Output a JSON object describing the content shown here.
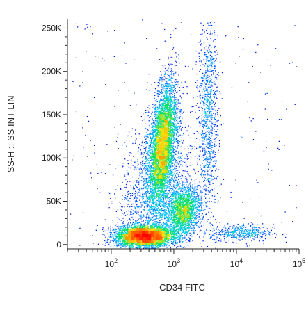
{
  "chart_data": {
    "type": "scatter",
    "subtype": "flow-cytometry-density-plot",
    "title": "",
    "xlabel": "CD34 FITC",
    "ylabel": "SS-H :: SS INT LIN",
    "x_scale": "log",
    "y_scale": "linear",
    "xlim": [
      20,
      100000
    ],
    "ylim": [
      -5000,
      260000
    ],
    "grid": false,
    "legend": "none",
    "x_tick_labels": [
      {
        "value": 100,
        "base": "10",
        "exp": "2"
      },
      {
        "value": 1000,
        "base": "10",
        "exp": "3"
      },
      {
        "value": 10000,
        "base": "10",
        "exp": "4"
      },
      {
        "value": 100000,
        "base": "10",
        "exp": "5"
      }
    ],
    "y_ticks": [
      {
        "value": 0,
        "label": "0"
      },
      {
        "value": 50000,
        "label": "50K"
      },
      {
        "value": 100000,
        "label": "100K"
      },
      {
        "value": 150000,
        "label": "150K"
      },
      {
        "value": 200000,
        "label": "200K"
      },
      {
        "value": 250000,
        "label": "250K"
      }
    ],
    "color_scale": [
      "#0000cc",
      "#0060ff",
      "#00c8ff",
      "#00e060",
      "#ffe000",
      "#ff6000",
      "#ff0000"
    ],
    "populations": [
      {
        "x_center": 330,
        "y_center": 10000,
        "x_spread_decades": 0.22,
        "y_spread": 6000,
        "tilt": 0.0,
        "weight": 0.3
      },
      {
        "x_center": 650,
        "y_center": 115000,
        "x_spread_decades": 0.11,
        "y_spread": 32000,
        "tilt": 0.25,
        "weight": 0.34
      },
      {
        "x_center": 1400,
        "y_center": 38000,
        "x_spread_decades": 0.14,
        "y_spread": 14000,
        "tilt": 0.1,
        "weight": 0.14
      },
      {
        "x_center": 3500,
        "y_center": 150000,
        "x_spread_decades": 0.08,
        "y_spread": 55000,
        "tilt": 0.0,
        "weight": 0.07
      },
      {
        "x_center": 12000,
        "y_center": 14000,
        "x_spread_decades": 0.25,
        "y_spread": 5000,
        "tilt": 0.0,
        "weight": 0.03
      },
      {
        "x_center": 500,
        "y_center": 60000,
        "x_spread_decades": 0.3,
        "y_spread": 40000,
        "tilt": 0.15,
        "weight": 0.12
      }
    ]
  }
}
